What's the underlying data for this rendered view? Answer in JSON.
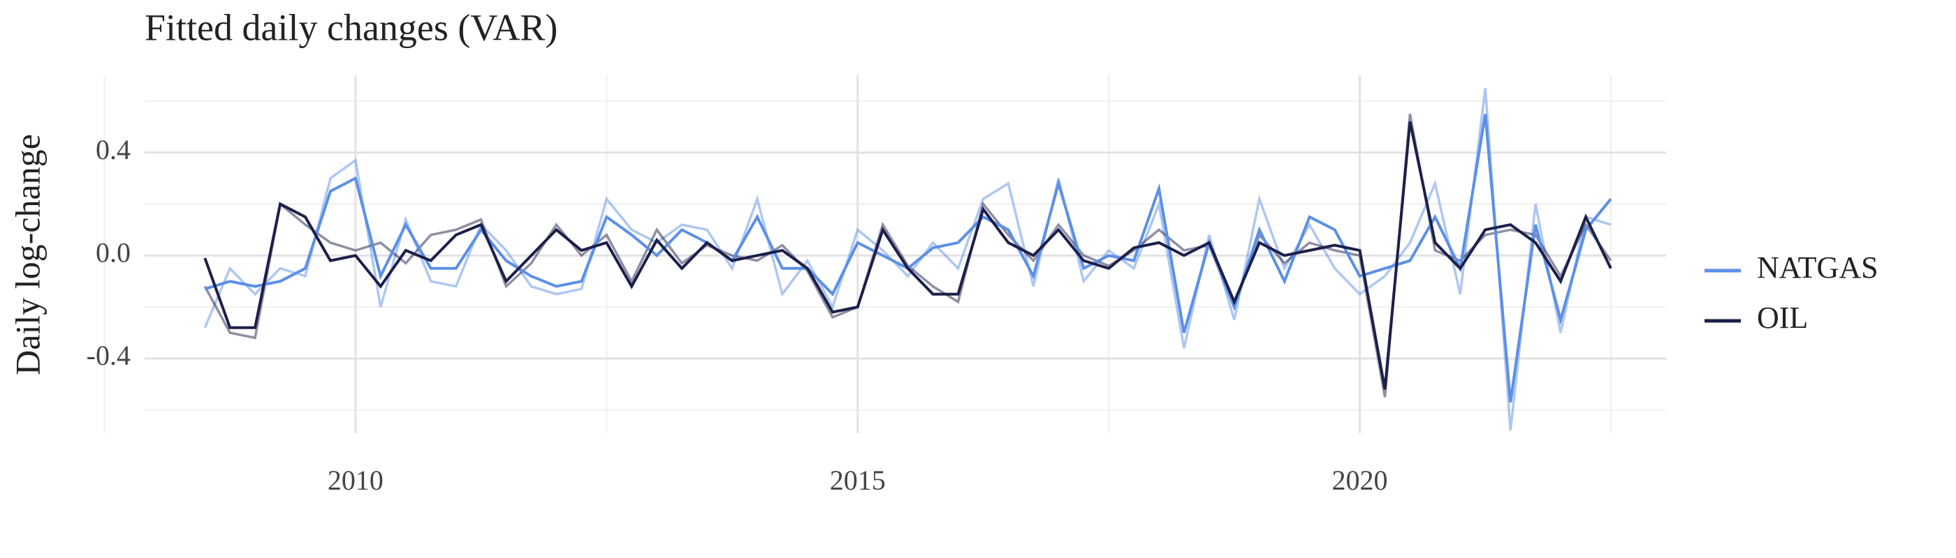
{
  "chart_data": {
    "type": "line",
    "title": "Fitted daily changes (VAR)",
    "y_label": "Daily log-change",
    "x": [
      2008.5,
      2008.75,
      2009.0,
      2009.25,
      2009.5,
      2009.75,
      2010.0,
      2010.25,
      2010.5,
      2010.75,
      2011.0,
      2011.25,
      2011.5,
      2011.75,
      2012.0,
      2012.25,
      2012.5,
      2012.75,
      2013.0,
      2013.25,
      2013.5,
      2013.75,
      2014.0,
      2014.25,
      2014.5,
      2014.75,
      2015.0,
      2015.25,
      2015.5,
      2015.75,
      2016.0,
      2016.25,
      2016.5,
      2016.75,
      2017.0,
      2017.25,
      2017.5,
      2017.75,
      2018.0,
      2018.25,
      2018.5,
      2018.75,
      2019.0,
      2019.25,
      2019.5,
      2019.75,
      2020.0,
      2020.25,
      2020.5,
      2020.75,
      2021.0,
      2021.25,
      2021.5,
      2021.75,
      2022.0,
      2022.25,
      2022.5
    ],
    "series": [
      {
        "name": "NATGAS",
        "color": "#5b8fe8",
        "values": [
          -0.13,
          -0.1,
          -0.12,
          -0.1,
          -0.05,
          0.25,
          0.3,
          -0.08,
          0.12,
          -0.05,
          -0.05,
          0.1,
          -0.02,
          -0.08,
          -0.12,
          -0.1,
          0.15,
          0.08,
          0.0,
          0.1,
          0.05,
          -0.02,
          0.15,
          -0.05,
          -0.05,
          -0.15,
          0.05,
          0.0,
          -0.05,
          0.03,
          0.05,
          0.15,
          0.1,
          -0.08,
          0.28,
          -0.05,
          0.0,
          -0.02,
          0.26,
          -0.3,
          0.05,
          -0.2,
          0.1,
          -0.1,
          0.15,
          0.1,
          -0.08,
          -0.05,
          -0.02,
          0.15,
          -0.05,
          0.55,
          -0.57,
          0.12,
          -0.25,
          0.1,
          0.22
        ],
        "observed": [
          -0.28,
          -0.05,
          -0.15,
          -0.05,
          -0.08,
          0.3,
          0.37,
          -0.2,
          0.14,
          -0.1,
          -0.12,
          0.12,
          0.02,
          -0.12,
          -0.15,
          -0.13,
          0.22,
          0.1,
          0.05,
          0.12,
          0.1,
          -0.05,
          0.22,
          -0.15,
          -0.02,
          -0.2,
          0.1,
          0.02,
          -0.08,
          0.05,
          -0.05,
          0.22,
          0.28,
          -0.12,
          0.3,
          -0.1,
          0.02,
          -0.05,
          0.2,
          -0.36,
          0.08,
          -0.25,
          0.22,
          -0.05,
          0.12,
          -0.05,
          -0.15,
          -0.08,
          0.05,
          0.28,
          -0.15,
          0.65,
          -0.68,
          0.2,
          -0.3,
          0.15,
          0.12
        ]
      },
      {
        "name": "OIL",
        "color": "#1c1f4a",
        "values": [
          -0.01,
          -0.28,
          -0.28,
          0.2,
          0.15,
          -0.02,
          0.0,
          -0.12,
          0.02,
          -0.02,
          0.08,
          0.12,
          -0.1,
          0.0,
          0.1,
          0.02,
          0.05,
          -0.12,
          0.06,
          -0.05,
          0.05,
          -0.02,
          0.0,
          0.02,
          -0.05,
          -0.22,
          -0.2,
          0.1,
          -0.05,
          -0.15,
          -0.15,
          0.18,
          0.05,
          0.0,
          0.1,
          -0.02,
          -0.05,
          0.03,
          0.05,
          0.0,
          0.05,
          -0.18,
          0.05,
          0.0,
          0.02,
          0.04,
          0.02,
          -0.52,
          0.52,
          0.05,
          -0.05,
          0.1,
          0.12,
          0.05,
          -0.1,
          0.15,
          -0.05
        ],
        "observed": [
          -0.12,
          -0.3,
          -0.32,
          0.2,
          0.12,
          0.05,
          0.02,
          0.05,
          -0.03,
          0.08,
          0.1,
          0.14,
          -0.12,
          -0.03,
          0.12,
          0.0,
          0.08,
          -0.1,
          0.1,
          -0.03,
          0.04,
          0.0,
          -0.02,
          0.04,
          -0.06,
          -0.24,
          -0.2,
          0.12,
          -0.04,
          -0.12,
          -0.18,
          0.2,
          0.08,
          -0.02,
          0.12,
          0.0,
          -0.04,
          0.02,
          0.1,
          0.02,
          0.04,
          -0.2,
          0.08,
          -0.03,
          0.05,
          0.02,
          0.0,
          -0.55,
          0.55,
          0.02,
          -0.02,
          0.08,
          0.1,
          0.08,
          -0.08,
          0.12,
          -0.02
        ]
      }
    ],
    "observed_opacity": 0.5,
    "xlim": [
      2007.9,
      2023.05
    ],
    "xticks": [
      2010,
      2015,
      2020
    ],
    "x_minor_ticks": [
      2007.5,
      2012.5,
      2017.5,
      2022.5
    ],
    "ylim": [
      -0.69,
      0.7
    ],
    "yticks": [
      -0.4,
      {
        "value": 0,
        "label": "0.0"
      },
      0.4
    ],
    "y_minor_ticks": [
      -0.6,
      -0.2,
      0.2,
      0.6
    ],
    "grid": true
  }
}
